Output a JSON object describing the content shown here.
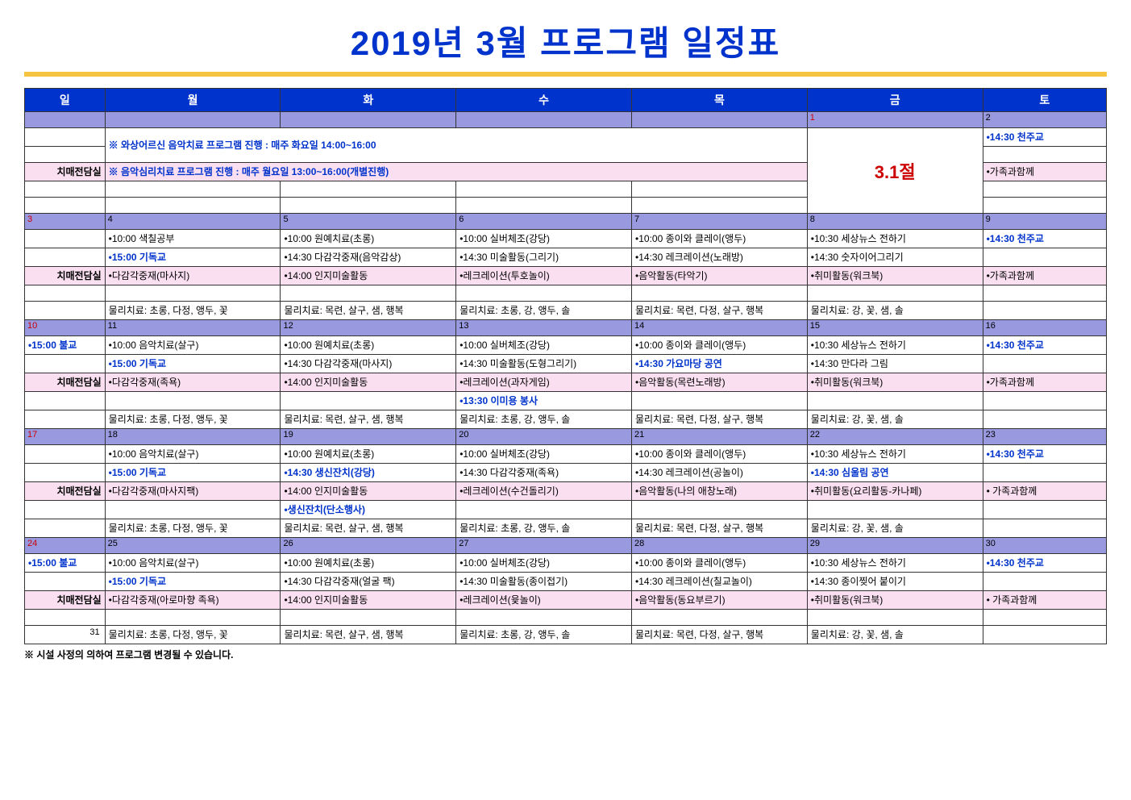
{
  "title": "2019년 3월 프로그램 일정표",
  "days": [
    "일",
    "월",
    "화",
    "수",
    "목",
    "금",
    "토"
  ],
  "label_dementia": "치매전담실",
  "footnote": "※ 시설 사정의 의하여 프로그램 변경될 수 있습니다.",
  "date31": "31",
  "colors": {
    "header_bg": "#0033cc",
    "daynum_bg": "#9999e0",
    "pink_bg": "#fadff0",
    "title_color": "#0033cc",
    "underline": "#f5c542"
  },
  "w1": {
    "notice1": "※ 와상어르신 음악치료 프로그램 진행 : 매주 화요일 14:00~16:00",
    "notice2": "※ 음악심리치료 프로그램 진행 : 매주 월요일 13:00~16:00(개별진행)",
    "holiday": "3.1절",
    "fri_num": "1",
    "sat_num": "2",
    "sat_1": "•14:30 천주교",
    "sat_2": "•가족과함께"
  },
  "w2": {
    "sun": "3",
    "mon": "4",
    "tue": "5",
    "wed": "6",
    "thu": "7",
    "fri": "8",
    "sat": "9",
    "mon_1": "•10:00 색칠공부",
    "mon_2": "•15:00 기독교",
    "tue_1": "•10:00 원예치료(초롱)",
    "tue_2": "•14:30 다감각중재(음악감상)",
    "wed_1": "•10:00 실버체조(강당)",
    "wed_2": "•14:30 미술활동(그리기)",
    "thu_1": "•10:00 종이와 클레이(앵두)",
    "thu_2": "•14:30 레크레이션(노래방)",
    "fri_1": "•10:30 세상뉴스 전하기",
    "fri_2": "•14:30 숫자이어그리기",
    "sat_1": "•14:30 천주교",
    "mon_p": "•다감각중재(마사지)",
    "tue_p": "•14:00 인지미술활동",
    "wed_p": "•레크레이션(투호놀이)",
    "thu_p": "•음악활동(타악기)",
    "fri_p": "•취미활동(워크북)",
    "sat_p": "•가족과함께",
    "mon_pt": "물리치료: 초롱, 다정, 앵두, 꽃",
    "tue_pt": "물리치료: 목련, 살구, 샘, 행복",
    "wed_pt": "물리치료: 초롱, 강, 앵두, 솔",
    "thu_pt": "물리치료: 목련, 다정, 살구, 행복",
    "fri_pt": "물리치료: 강, 꽃, 샘, 솔"
  },
  "w3": {
    "sun": "10",
    "mon": "11",
    "tue": "12",
    "wed": "13",
    "thu": "14",
    "fri": "15",
    "sat": "16",
    "sun_1": "•15:00 불교",
    "mon_1": "•10:00 음악치료(살구)",
    "mon_2": "•15:00 기독교",
    "tue_1": "•10:00 원예치료(초롱)",
    "tue_2": "•14:30 다감각중재(마사지)",
    "wed_1": "•10:00 실버체조(강당)",
    "wed_2": "•14:30 미술활동(도형그리기)",
    "thu_1": "•10:00 종이와 클레이(앵두)",
    "thu_2": "•14:30 가요마당 공연",
    "fri_1": "•10:30 세상뉴스 전하기",
    "fri_2": "•14:30 만다라 그림",
    "sat_1": "•14:30 천주교",
    "mon_p": "•다감각중재(족욕)",
    "tue_p": "•14:00 인지미술활동",
    "wed_p": "•레크레이션(과자게임)",
    "thu_p": "•음악활동(목련노래방)",
    "fri_p": "•취미활동(워크북)",
    "sat_p": "•가족과함께",
    "wed_ex": "•13:30 이미용 봉사",
    "mon_pt": "물리치료: 초롱, 다정, 앵두, 꽃",
    "tue_pt": "물리치료: 목련, 살구, 샘, 행복",
    "wed_pt": "물리치료: 초롱, 강, 앵두, 솔",
    "thu_pt": "물리치료: 목련, 다정, 살구, 행복",
    "fri_pt": "물리치료: 강, 꽃, 샘, 솔"
  },
  "w4": {
    "sun": "17",
    "mon": "18",
    "tue": "19",
    "wed": "20",
    "thu": "21",
    "fri": "22",
    "sat": "23",
    "mon_1": "•10:00 음악치료(살구)",
    "mon_2": "•15:00 기독교",
    "tue_1": "•10:00 원예치료(초롱)",
    "tue_2": "•14:30 생신잔치(강당)",
    "wed_1": "•10:00 실버체조(강당)",
    "wed_2": "•14:30 다감각중재(족욕)",
    "thu_1": "•10:00 종이와 클레이(앵두)",
    "thu_2": "•14:30 레크레이션(공놀이)",
    "fri_1": "•10:30 세상뉴스 전하기",
    "fri_2": "•14:30 심울림 공연",
    "sat_1": "•14:30 천주교",
    "mon_p": "•다감각중재(마사지팩)",
    "tue_p": "•14:00 인지미술활동",
    "wed_p": "•레크레이션(수건돌리기)",
    "thu_p": "•음악활동(나의 애창노래)",
    "fri_p": "•취미활동(요리활동-카나페)",
    "sat_p": "• 가족과함께",
    "tue_ex": "•생신잔치(단소행사)",
    "mon_pt": "물리치료: 초롱, 다정, 앵두, 꽃",
    "tue_pt": "물리치료: 목련, 살구, 샘, 행복",
    "wed_pt": "물리치료: 초롱, 강, 앵두, 솔",
    "thu_pt": "물리치료: 목련, 다정, 살구, 행복",
    "fri_pt": "물리치료: 강, 꽃, 샘, 솔"
  },
  "w5": {
    "sun": "24",
    "mon": "25",
    "tue": "26",
    "wed": "27",
    "thu": "28",
    "fri": "29",
    "sat": "30",
    "sun_1": "•15:00 불교",
    "mon_1": "•10:00 음악치료(살구)",
    "mon_2": "•15:00 기독교",
    "tue_1": "•10:00 원예치료(초롱)",
    "tue_2": "•14:30 다감각중재(얼굴 팩)",
    "wed_1": "•10:00 실버체조(강당)",
    "wed_2": "•14:30 미술활동(종이접기)",
    "thu_1": "•10:00 종이와 클레이(앵두)",
    "thu_2": "•14:30 레크레이션(칠교놀이)",
    "fri_1": "•10:30 세상뉴스 전하기",
    "fri_2": "•14:30 종이찢어 붙이기",
    "sat_1": "•14:30 천주교",
    "mon_p": "•다감각중재(아로마향 족욕)",
    "tue_p": "•14:00 인지미술활동",
    "wed_p": "•레크레이션(윷놀이)",
    "thu_p": "•음악활동(동요부르기)",
    "fri_p": "•취미활동(워크북)",
    "sat_p": "• 가족과함께",
    "mon_pt": "물리치료: 초롱, 다정, 앵두, 꽃",
    "tue_pt": "물리치료: 목련, 살구, 샘, 행복",
    "wed_pt": "물리치료: 초롱, 강, 앵두, 솔",
    "thu_pt": "물리치료: 목련, 다정, 살구, 행복",
    "fri_pt": "물리치료: 강, 꽃, 샘, 솔"
  }
}
